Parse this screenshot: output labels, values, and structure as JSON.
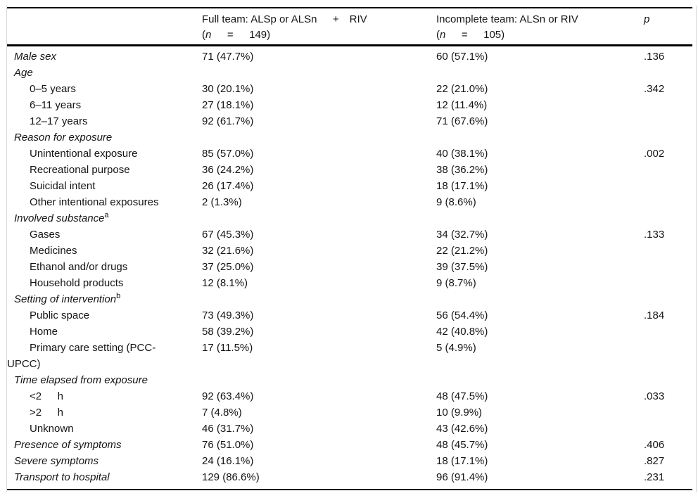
{
  "table": {
    "header": {
      "full_team": {
        "line1": "Full team: ALSp or ALSn  + RIV",
        "n_open": "(",
        "n_symbol": "n",
        "n_rest": "  =  149)"
      },
      "incomplete_team": {
        "line1": "Incomplete team: ALSn or RIV",
        "n_open": "(",
        "n_symbol": "n",
        "n_rest": "  =  105)"
      },
      "p_label": "p"
    },
    "rows": [
      {
        "label": "Male sex",
        "level": 0,
        "full": "71 (47.7%)",
        "incomplete": "60 (57.1%)",
        "p": ".136"
      },
      {
        "label": "Age",
        "level": 0,
        "full": "",
        "incomplete": "",
        "p": ""
      },
      {
        "label": "0–5 years",
        "level": 1,
        "full": "30 (20.1%)",
        "incomplete": "22 (21.0%)",
        "p": ".342"
      },
      {
        "label": "6–11 years",
        "level": 1,
        "full": "27 (18.1%)",
        "incomplete": "12 (11.4%)",
        "p": ""
      },
      {
        "label": "12–17 years",
        "level": 1,
        "full": "92 (61.7%)",
        "incomplete": "71 (67.6%)",
        "p": ""
      },
      {
        "label": "Reason for exposure",
        "level": 0,
        "full": "",
        "incomplete": "",
        "p": ""
      },
      {
        "label": "Unintentional exposure",
        "level": 1,
        "full": "85 (57.0%)",
        "incomplete": "40 (38.1%)",
        "p": ".002"
      },
      {
        "label": "Recreational purpose",
        "level": 1,
        "full": "36 (24.2%)",
        "incomplete": "38 (36.2%)",
        "p": ""
      },
      {
        "label": "Suicidal intent",
        "level": 1,
        "full": "26 (17.4%)",
        "incomplete": "18 (17.1%)",
        "p": ""
      },
      {
        "label": "Other intentional exposures",
        "level": 1,
        "full": "2 (1.3%)",
        "incomplete": "9 (8.6%)",
        "p": ""
      },
      {
        "label": "Involved substance",
        "sup": "a",
        "level": 0,
        "full": "",
        "incomplete": "",
        "p": ""
      },
      {
        "label": "Gases",
        "level": 1,
        "full": "67 (45.3%)",
        "incomplete": "34 (32.7%)",
        "p": ".133"
      },
      {
        "label": "Medicines",
        "level": 1,
        "full": "32 (21.6%)",
        "incomplete": "22 (21.2%)",
        "p": ""
      },
      {
        "label": "Ethanol and/or drugs",
        "level": 1,
        "full": "37 (25.0%)",
        "incomplete": "39 (37.5%)",
        "p": ""
      },
      {
        "label": "Household products",
        "level": 1,
        "full": "12 (8.1%)",
        "incomplete": "9 (8.7%)",
        "p": ""
      },
      {
        "label": "Setting of intervention",
        "sup": "b",
        "level": 0,
        "full": "",
        "incomplete": "",
        "p": ""
      },
      {
        "label": "Public space",
        "level": 1,
        "full": "73 (49.3%)",
        "incomplete": "56 (54.4%)",
        "p": ".184"
      },
      {
        "label": "Home",
        "level": 1,
        "full": "58 (39.2%)",
        "incomplete": "42 (40.8%)",
        "p": ""
      },
      {
        "label": "Primary care setting (PCC-",
        "label2": "UPCC)",
        "level": 1,
        "full": "17 (11.5%)",
        "incomplete": "5 (4.9%)",
        "p": ""
      },
      {
        "label": "Time elapsed from exposure",
        "level": 0,
        "full": "",
        "incomplete": "",
        "p": ""
      },
      {
        "label": "<2  h",
        "level": 1,
        "full": "92 (63.4%)",
        "incomplete": "48 (47.5%)",
        "p": ".033"
      },
      {
        "label": ">2  h",
        "level": 1,
        "full": "7 (4.8%)",
        "incomplete": "10 (9.9%)",
        "p": ""
      },
      {
        "label": "Unknown",
        "level": 1,
        "full": "46 (31.7%)",
        "incomplete": "43 (42.6%)",
        "p": ""
      },
      {
        "label": "Presence of symptoms",
        "level": 0,
        "full": "76 (51.0%)",
        "incomplete": "48 (45.7%)",
        "p": ".406"
      },
      {
        "label": "Severe symptoms",
        "level": 0,
        "full": "24 (16.1%)",
        "incomplete": "18 (17.1%)",
        "p": ".827"
      },
      {
        "label": "Transport to hospital",
        "level": 0,
        "full": "129 (86.6%)",
        "incomplete": "96 (91.4%)",
        "p": ".231"
      }
    ]
  }
}
